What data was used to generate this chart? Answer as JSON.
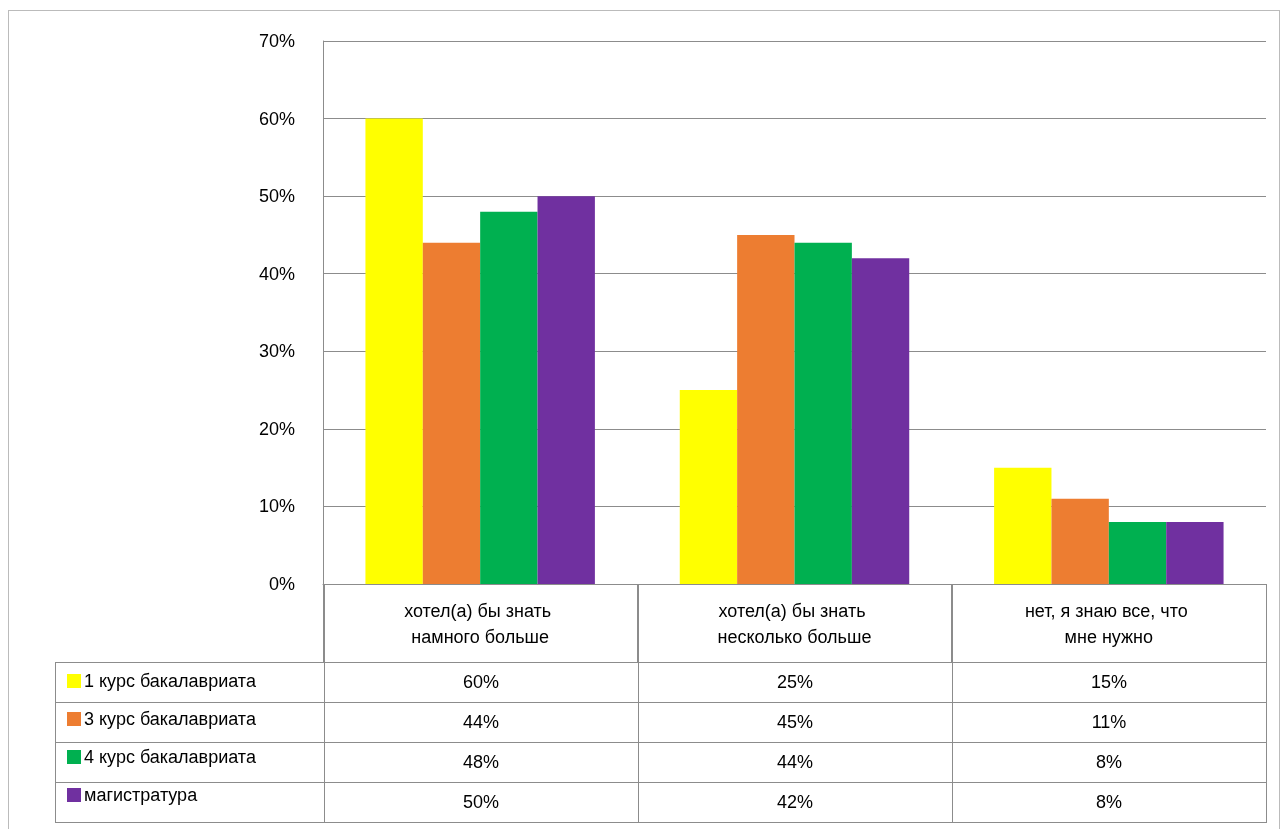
{
  "chart_data": {
    "type": "bar",
    "categories": [
      "хотел(а) бы знать намного больше",
      "хотел(а) бы знать несколько больше",
      "нет, я знаю все, что мне нужно"
    ],
    "series": [
      {
        "name": "1 курс бакалавриата",
        "color": "#ffff00",
        "values": [
          60,
          25,
          15
        ],
        "value_labels": [
          "60%",
          "25%",
          "15%"
        ]
      },
      {
        "name": "3 курс бакалавриата",
        "color": "#ed7d31",
        "values": [
          44,
          45,
          11
        ],
        "value_labels": [
          "44%",
          "45%",
          "11%"
        ]
      },
      {
        "name": "4 курс бакалавриата",
        "color": "#00b050",
        "values": [
          48,
          44,
          8
        ],
        "value_labels": [
          "48%",
          "44%",
          "8%"
        ]
      },
      {
        "name": "магистратура",
        "color": "#7030a0",
        "values": [
          50,
          42,
          8
        ],
        "value_labels": [
          "50%",
          "42%",
          "8%"
        ]
      }
    ],
    "ylim": [
      0,
      70
    ],
    "yticks": [
      {
        "value": 0,
        "label": "0%"
      },
      {
        "value": 10,
        "label": "10%"
      },
      {
        "value": 20,
        "label": "20%"
      },
      {
        "value": 30,
        "label": "30%"
      },
      {
        "value": 40,
        "label": "40%"
      },
      {
        "value": 50,
        "label": "50%"
      },
      {
        "value": 60,
        "label": "60%"
      },
      {
        "value": 70,
        "label": "70%"
      }
    ],
    "grid": "y",
    "legend": "bottom left"
  }
}
